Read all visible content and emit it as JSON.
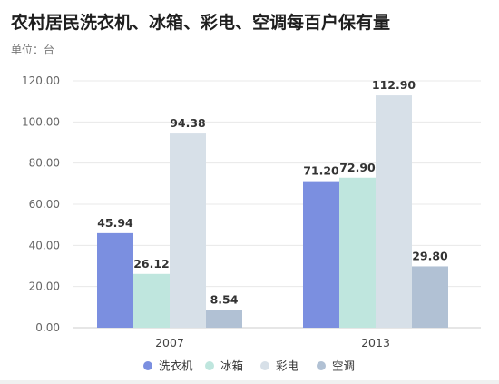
{
  "chart_data": {
    "type": "bar",
    "title": "农村居民洗衣机、冰箱、彩电、空调每百户保有量",
    "subtitle": "单位：台",
    "categories": [
      "2007",
      "2013"
    ],
    "series": [
      {
        "name": "洗衣机",
        "color": "#7b8fe0",
        "values": [
          45.94,
          71.2
        ],
        "labels": [
          "45.94",
          "71.20"
        ]
      },
      {
        "name": "冰箱",
        "color": "#bfe6de",
        "values": [
          26.12,
          72.9
        ],
        "labels": [
          "26.12",
          "72.90"
        ]
      },
      {
        "name": "彩电",
        "color": "#d7e0e8",
        "values": [
          94.38,
          112.9
        ],
        "labels": [
          "94.38",
          "112.90"
        ]
      },
      {
        "name": "空调",
        "color": "#b1c1d4",
        "values": [
          8.54,
          29.8
        ],
        "labels": [
          "8.54",
          "29.80"
        ]
      }
    ],
    "yticks": [
      "0.00",
      "20.00",
      "40.00",
      "60.00",
      "80.00",
      "100.00",
      "120.00"
    ],
    "ylim": [
      0,
      120
    ],
    "grid": true,
    "legend": "bottom"
  }
}
